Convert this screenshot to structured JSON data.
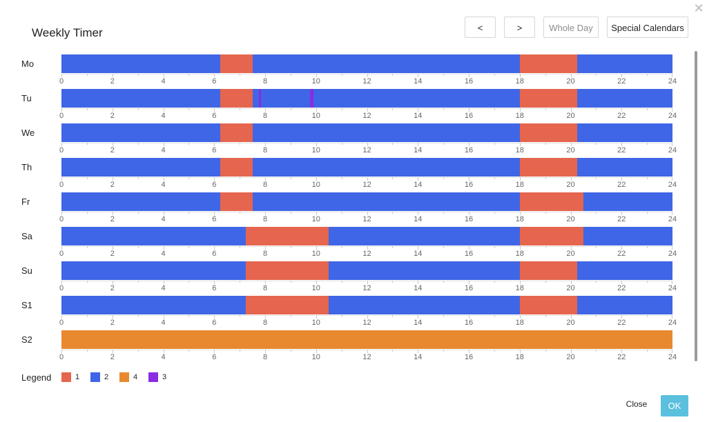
{
  "dialog": {
    "title": "Weekly Timer",
    "close_icon": "close-icon",
    "buttons": {
      "prev": "<",
      "next": ">",
      "whole_day": "Whole Day",
      "special_calendars": "Special Calendars"
    },
    "footer": {
      "close": "Close",
      "ok": "OK"
    }
  },
  "colors": {
    "1": "#e5654e",
    "2": "#3f66e6",
    "3": "#8b2be2",
    "4": "#e8892f"
  },
  "chart_data": {
    "type": "timeline",
    "x_range": [
      0,
      24
    ],
    "ticks": [
      "0",
      "2",
      "4",
      "6",
      "8",
      "10",
      "12",
      "14",
      "16",
      "18",
      "20",
      "22",
      "24"
    ],
    "rows": [
      {
        "label": "Mo",
        "segments": [
          {
            "start": 0,
            "end": 6.25,
            "value": 2
          },
          {
            "start": 6.25,
            "end": 7.5,
            "value": 1
          },
          {
            "start": 7.5,
            "end": 18,
            "value": 2
          },
          {
            "start": 18,
            "end": 20.25,
            "value": 1
          },
          {
            "start": 20.25,
            "end": 24,
            "value": 2
          }
        ]
      },
      {
        "label": "Tu",
        "segments": [
          {
            "start": 0,
            "end": 6.25,
            "value": 2
          },
          {
            "start": 6.25,
            "end": 7.5,
            "value": 1
          },
          {
            "start": 7.5,
            "end": 7.75,
            "value": 2
          },
          {
            "start": 7.75,
            "end": 7.83,
            "value": 3
          },
          {
            "start": 7.83,
            "end": 9.75,
            "value": 2
          },
          {
            "start": 9.75,
            "end": 9.9,
            "value": 3
          },
          {
            "start": 9.9,
            "end": 18,
            "value": 2
          },
          {
            "start": 18,
            "end": 20.25,
            "value": 1
          },
          {
            "start": 20.25,
            "end": 24,
            "value": 2
          }
        ]
      },
      {
        "label": "We",
        "segments": [
          {
            "start": 0,
            "end": 6.25,
            "value": 2
          },
          {
            "start": 6.25,
            "end": 7.5,
            "value": 1
          },
          {
            "start": 7.5,
            "end": 18,
            "value": 2
          },
          {
            "start": 18,
            "end": 20.25,
            "value": 1
          },
          {
            "start": 20.25,
            "end": 24,
            "value": 2
          }
        ]
      },
      {
        "label": "Th",
        "segments": [
          {
            "start": 0,
            "end": 6.25,
            "value": 2
          },
          {
            "start": 6.25,
            "end": 7.5,
            "value": 1
          },
          {
            "start": 7.5,
            "end": 18,
            "value": 2
          },
          {
            "start": 18,
            "end": 20.25,
            "value": 1
          },
          {
            "start": 20.25,
            "end": 24,
            "value": 2
          }
        ]
      },
      {
        "label": "Fr",
        "segments": [
          {
            "start": 0,
            "end": 6.25,
            "value": 2
          },
          {
            "start": 6.25,
            "end": 7.5,
            "value": 1
          },
          {
            "start": 7.5,
            "end": 18,
            "value": 2
          },
          {
            "start": 18,
            "end": 20.5,
            "value": 1
          },
          {
            "start": 20.5,
            "end": 24,
            "value": 2
          }
        ]
      },
      {
        "label": "Sa",
        "segments": [
          {
            "start": 0,
            "end": 7.25,
            "value": 2
          },
          {
            "start": 7.25,
            "end": 10.5,
            "value": 1
          },
          {
            "start": 10.5,
            "end": 18,
            "value": 2
          },
          {
            "start": 18,
            "end": 20.5,
            "value": 1
          },
          {
            "start": 20.5,
            "end": 24,
            "value": 2
          }
        ]
      },
      {
        "label": "Su",
        "segments": [
          {
            "start": 0,
            "end": 7.25,
            "value": 2
          },
          {
            "start": 7.25,
            "end": 10.5,
            "value": 1
          },
          {
            "start": 10.5,
            "end": 18,
            "value": 2
          },
          {
            "start": 18,
            "end": 20.25,
            "value": 1
          },
          {
            "start": 20.25,
            "end": 24,
            "value": 2
          }
        ]
      },
      {
        "label": "S1",
        "segments": [
          {
            "start": 0,
            "end": 7.25,
            "value": 2
          },
          {
            "start": 7.25,
            "end": 10.5,
            "value": 1
          },
          {
            "start": 10.5,
            "end": 18,
            "value": 2
          },
          {
            "start": 18,
            "end": 20.25,
            "value": 1
          },
          {
            "start": 20.25,
            "end": 24,
            "value": 2
          }
        ]
      },
      {
        "label": "S2",
        "segments": [
          {
            "start": 0,
            "end": 24,
            "value": 4
          }
        ]
      }
    ],
    "legend_title": "Legend",
    "legend": [
      {
        "label": "1",
        "value": "1"
      },
      {
        "label": "2",
        "value": "2"
      },
      {
        "label": "4",
        "value": "4"
      },
      {
        "label": "3",
        "value": "3"
      }
    ]
  }
}
